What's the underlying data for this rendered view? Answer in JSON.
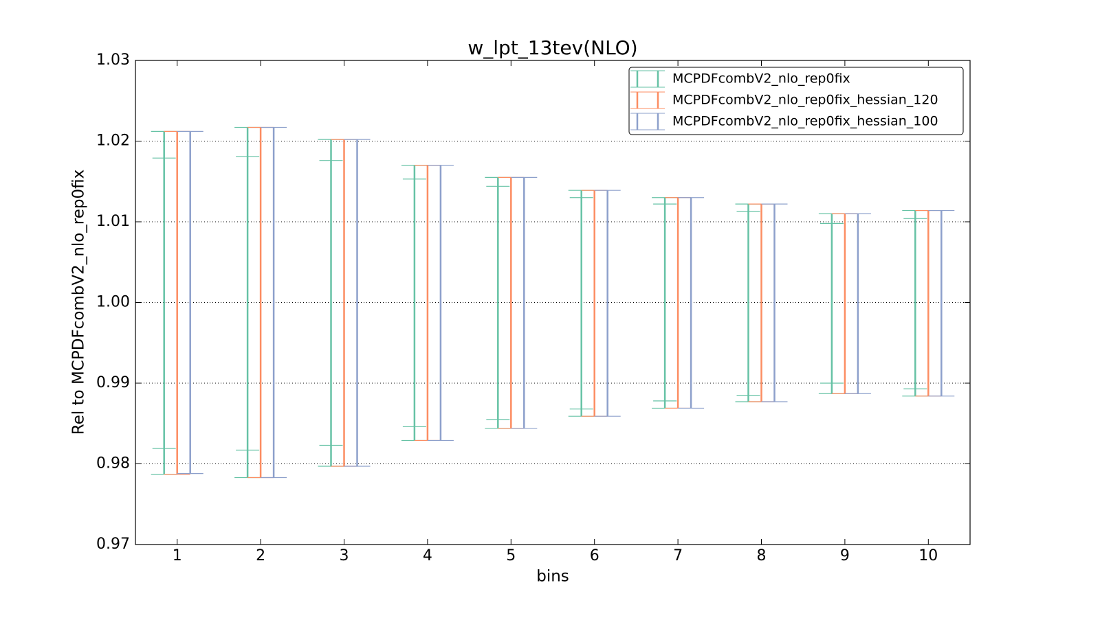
{
  "chart_data": {
    "type": "errorbar",
    "title": "w_lpt_13tev(NLO)",
    "x_label": "bins",
    "y_label": "Rel to MCPDFcombV2_nlo_rep0fix",
    "x": [
      1,
      2,
      3,
      4,
      5,
      6,
      7,
      8,
      9,
      10
    ],
    "xlim": [
      0.5,
      10.5
    ],
    "xticks": [
      1,
      2,
      3,
      4,
      5,
      6,
      7,
      8,
      9,
      10
    ],
    "ylim": [
      0.97,
      1.03
    ],
    "yticks": [
      0.97,
      0.98,
      0.99,
      {
        "value": 1,
        "label": "1.00"
      },
      1.01,
      1.02,
      1.03
    ],
    "grid": true,
    "legend": "upper right",
    "series": [
      {
        "name": "MCPDFcombV2_nlo_rep0fix",
        "color": "#66c2a5",
        "low": [
          0.9787,
          0.9783,
          0.9797,
          0.9829,
          0.9844,
          0.9859,
          0.9869,
          0.9877,
          0.9887,
          0.9884
        ],
        "high": [
          1.0212,
          1.0217,
          1.0202,
          1.017,
          1.0155,
          1.0139,
          1.013,
          1.0122,
          1.011,
          1.0114
        ],
        "inner_low": [
          0.9819,
          0.9817,
          0.9823,
          0.9846,
          0.9855,
          0.9868,
          0.9878,
          0.9885,
          0.99,
          0.9893
        ],
        "inner_high": [
          1.0179,
          1.0181,
          1.0176,
          1.0153,
          1.0144,
          1.013,
          1.0122,
          1.0113,
          1.0098,
          1.0104
        ]
      },
      {
        "name": "MCPDFcombV2_nlo_rep0fix_hessian_120",
        "color": "#fc8d62",
        "low": [
          0.9787,
          0.9783,
          0.9797,
          0.9829,
          0.9844,
          0.9859,
          0.9869,
          0.9877,
          0.9887,
          0.9884
        ],
        "high": [
          1.0212,
          1.0217,
          1.0202,
          1.017,
          1.0155,
          1.0139,
          1.013,
          1.0122,
          1.011,
          1.0114
        ]
      },
      {
        "name": "MCPDFcombV2_nlo_rep0fix_hessian_100",
        "color": "#8da0cb",
        "low": [
          0.9788,
          0.9783,
          0.9797,
          0.9829,
          0.9844,
          0.9859,
          0.9869,
          0.9877,
          0.9887,
          0.9884
        ],
        "high": [
          1.0212,
          1.0217,
          1.0202,
          1.017,
          1.0155,
          1.0139,
          1.013,
          1.0122,
          1.011,
          1.0114
        ]
      }
    ]
  }
}
